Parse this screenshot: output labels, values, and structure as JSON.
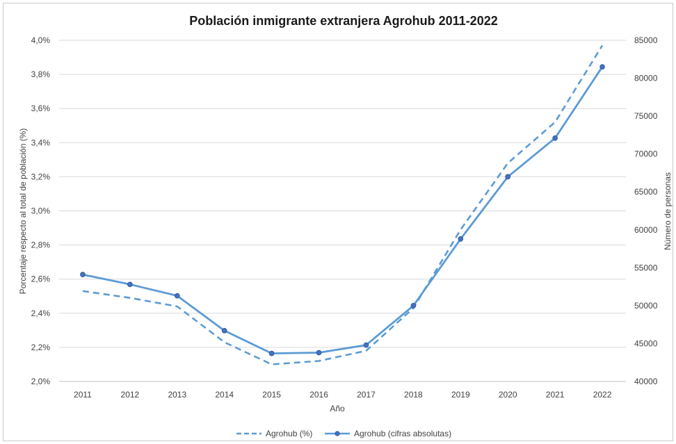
{
  "chart_data": {
    "type": "line",
    "title": "Población inmigrante extranjera Agrohub 2011-2022",
    "xlabel": "Año",
    "ylabel_left": "Porcentaje respecto al total de población (%)",
    "ylabel_right": "Número de personas",
    "categories": [
      "2011",
      "2012",
      "2013",
      "2014",
      "2015",
      "2016",
      "2017",
      "2018",
      "2019",
      "2020",
      "2021",
      "2022"
    ],
    "y_left": {
      "min": 2.0,
      "max": 4.0,
      "step": 0.2,
      "ticks": [
        "2,0%",
        "2,2%",
        "2,4%",
        "2,6%",
        "2,8%",
        "3,0%",
        "3,2%",
        "3,4%",
        "3,6%",
        "3,8%",
        "4,0%"
      ]
    },
    "y_right": {
      "min": 40000,
      "max": 85000,
      "step": 5000,
      "ticks": [
        "40000",
        "45000",
        "50000",
        "55000",
        "60000",
        "65000",
        "70000",
        "75000",
        "80000",
        "85000"
      ]
    },
    "grid": true,
    "legend_position": "bottom",
    "series": [
      {
        "name": "Agrohub (%)",
        "axis": "left",
        "style": "dashed",
        "color": "#5b9bd5",
        "values": [
          2.53,
          2.49,
          2.44,
          2.23,
          2.1,
          2.12,
          2.18,
          2.43,
          2.89,
          3.28,
          3.52,
          3.97
        ]
      },
      {
        "name": "Agrohub (cifras absolutas)",
        "axis": "right",
        "style": "solid-markers",
        "color": "#5b9bd5",
        "marker_fill": "#4472c4",
        "values": [
          54100,
          52800,
          51300,
          46700,
          43700,
          43800,
          44800,
          50000,
          58800,
          67000,
          72100,
          81500
        ]
      }
    ]
  }
}
